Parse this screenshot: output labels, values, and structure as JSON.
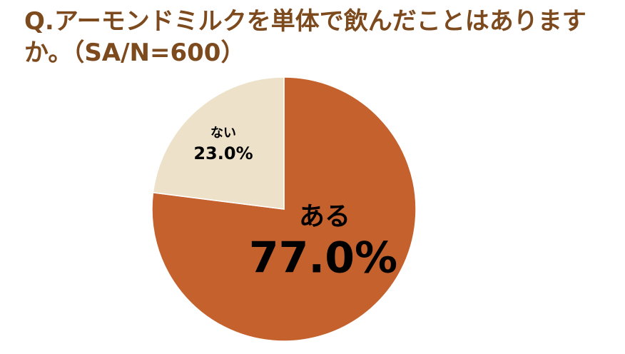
{
  "chart_data": {
    "type": "pie",
    "title": "Q.アーモンドミルクを単体で飲んだことはありますか。（SA/N=600）",
    "categories": [
      "ある",
      "ない"
    ],
    "values": [
      77.0,
      23.0
    ],
    "value_labels": [
      "77.0%",
      "23.0%"
    ],
    "colors": [
      "#c4612d",
      "#ede1c9"
    ]
  }
}
